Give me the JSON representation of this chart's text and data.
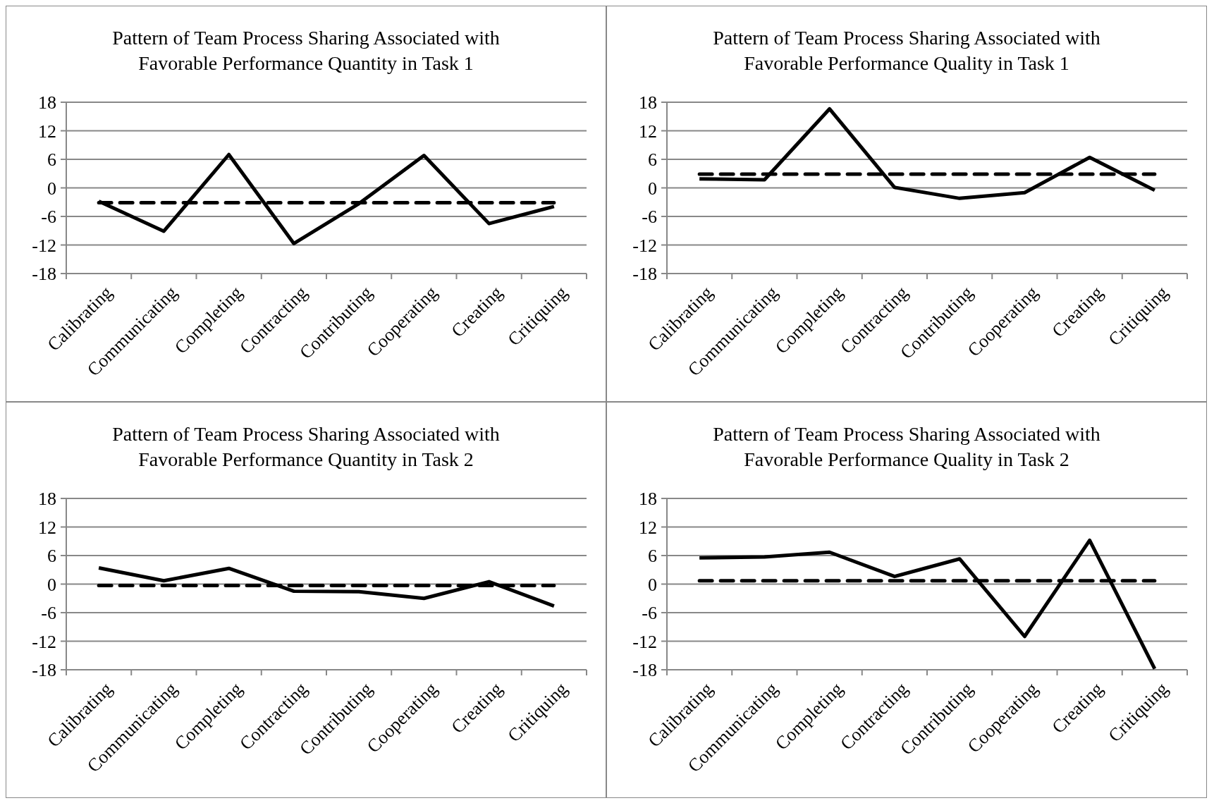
{
  "chart_data": [
    {
      "type": "line",
      "title": "Pattern of Team Process Sharing Associated with Favorable Performance Quantity in Task 1",
      "categories": [
        "Calibrating",
        "Communicating",
        "Completing",
        "Contracting",
        "Contributing",
        "Cooperating",
        "Creating",
        "Critiquing"
      ],
      "ylim": [
        -18,
        18
      ],
      "yticks": [
        -18,
        -12,
        -6,
        0,
        6,
        12,
        18
      ],
      "grid": "y",
      "series": [
        {
          "color": "#000000",
          "line_style": "solid",
          "values": [
            -2.8,
            -9.1,
            7.0,
            -11.7,
            -3.3,
            6.8,
            -7.5,
            -3.9
          ]
        },
        {
          "color": "#000000",
          "line_style": "dashed",
          "values": [
            -3.1,
            -3.1,
            -3.1,
            -3.1,
            -3.1,
            -3.1,
            -3.1,
            -3.1
          ]
        }
      ]
    },
    {
      "type": "line",
      "title": "Pattern of Team Process Sharing Associated with Favorable Performance Quality in Task 1",
      "categories": [
        "Calibrating",
        "Communicating",
        "Completing",
        "Contracting",
        "Contributing",
        "Cooperating",
        "Creating",
        "Critiquing"
      ],
      "ylim": [
        -18,
        18
      ],
      "yticks": [
        -18,
        -12,
        -6,
        0,
        6,
        12,
        18
      ],
      "grid": "y",
      "series": [
        {
          "color": "#000000",
          "line_style": "solid",
          "values": [
            1.9,
            1.7,
            16.6,
            0.1,
            -2.2,
            -1.0,
            6.4,
            -0.5
          ]
        },
        {
          "color": "#000000",
          "line_style": "dashed",
          "values": [
            2.9,
            2.9,
            2.9,
            2.9,
            2.9,
            2.9,
            2.9,
            2.9
          ]
        }
      ]
    },
    {
      "type": "line",
      "title": "Pattern of Team Process Sharing Associated with Favorable Performance Quantity in Task 2",
      "categories": [
        "Calibrating",
        "Communicating",
        "Completing",
        "Contracting",
        "Contributing",
        "Cooperating",
        "Creating",
        "Critiquing"
      ],
      "ylim": [
        -18,
        18
      ],
      "yticks": [
        -18,
        -12,
        -6,
        0,
        6,
        12,
        18
      ],
      "grid": "y",
      "series": [
        {
          "color": "#000000",
          "line_style": "solid",
          "values": [
            3.4,
            0.7,
            3.3,
            -1.5,
            -1.6,
            -3.0,
            0.5,
            -4.6
          ]
        },
        {
          "color": "#000000",
          "line_style": "dashed",
          "values": [
            -0.3,
            -0.3,
            -0.3,
            -0.3,
            -0.3,
            -0.3,
            -0.3,
            -0.3
          ]
        }
      ]
    },
    {
      "type": "line",
      "title": "Pattern of Team Process Sharing Associated with Favorable Performance Quality in Task 2",
      "categories": [
        "Calibrating",
        "Communicating",
        "Completing",
        "Contracting",
        "Contributing",
        "Cooperating",
        "Creating",
        "Critiquing"
      ],
      "ylim": [
        -18,
        18
      ],
      "yticks": [
        -18,
        -12,
        -6,
        0,
        6,
        12,
        18
      ],
      "grid": "y",
      "series": [
        {
          "color": "#000000",
          "line_style": "solid",
          "values": [
            5.5,
            5.7,
            6.7,
            1.6,
            5.3,
            -11.0,
            9.2,
            -17.8
          ]
        },
        {
          "color": "#000000",
          "line_style": "dashed",
          "values": [
            0.7,
            0.7,
            0.7,
            0.7,
            0.7,
            0.7,
            0.7,
            0.7
          ]
        }
      ]
    }
  ]
}
